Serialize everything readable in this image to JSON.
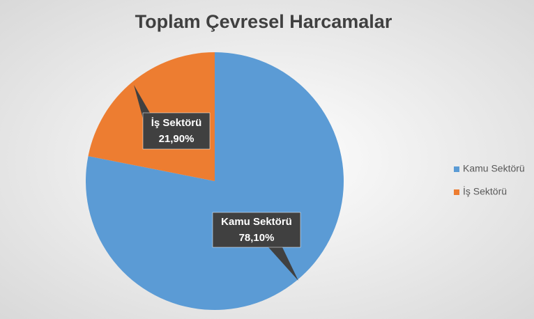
{
  "chart_data": {
    "type": "pie",
    "title": "Toplam Çevresel Harcamalar",
    "categories": [
      "Kamu Sektörü",
      "İş Sektörü"
    ],
    "values": [
      78.1,
      21.9
    ],
    "value_labels": [
      "78,10%",
      "21,90%"
    ],
    "colors": [
      "#5b9bd5",
      "#ed7d31"
    ],
    "legend": "right"
  }
}
